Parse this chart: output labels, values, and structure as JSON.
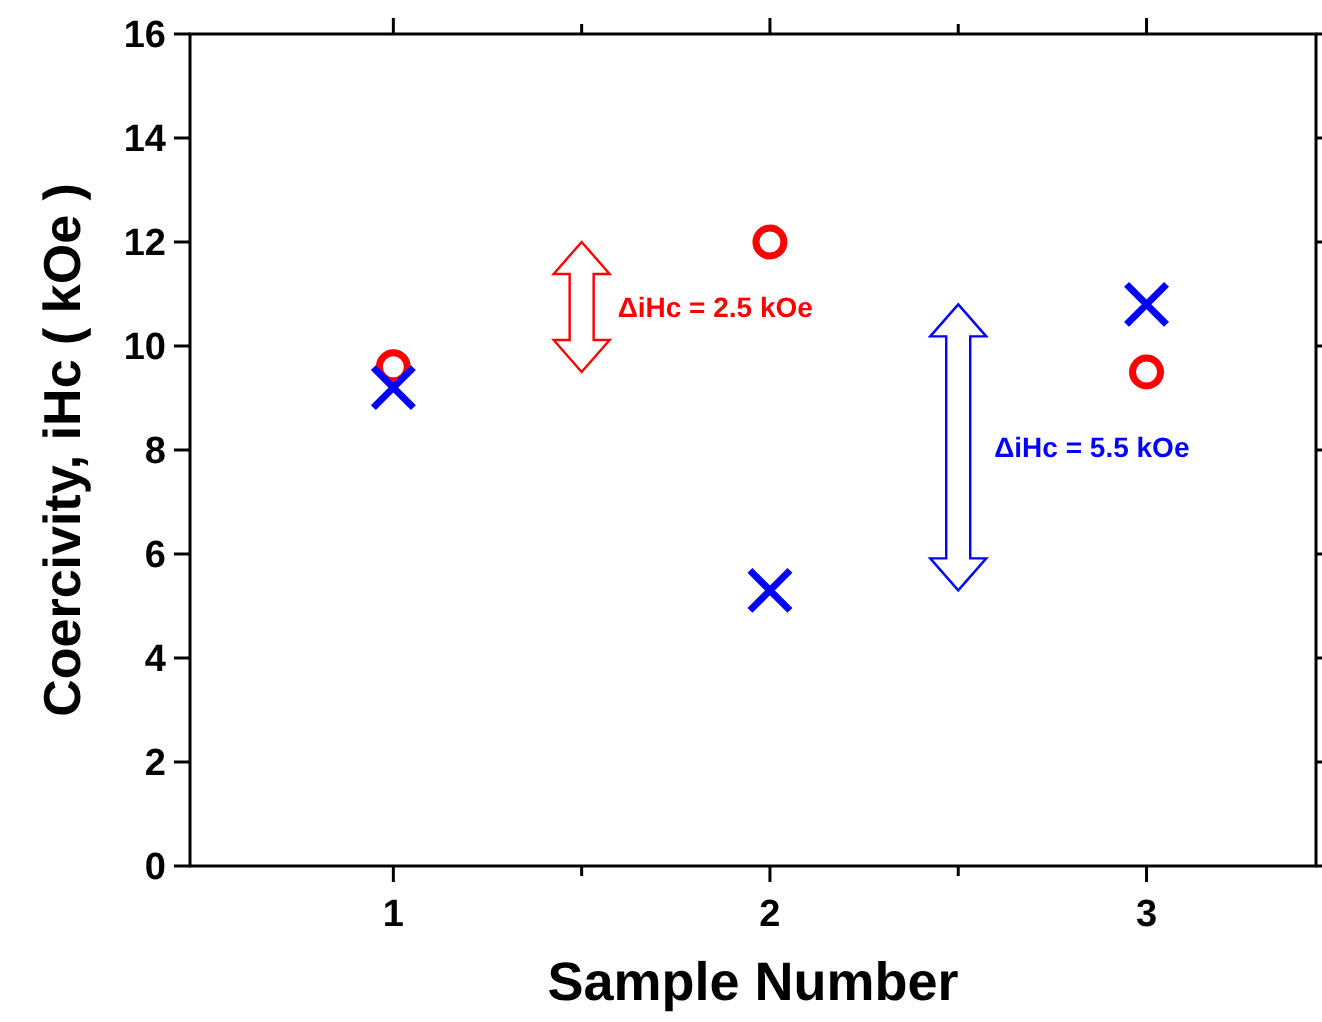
{
  "chart_data": {
    "type": "scatter",
    "xlabel": "Sample Number",
    "ylabel": "Coercivity, iHc ( kOe )",
    "x": [
      1,
      2,
      3
    ],
    "series": [
      {
        "color": "#ff0000",
        "marker": "circle",
        "values": [
          9.6,
          12.0,
          9.5
        ]
      },
      {
        "color": "#0000ff",
        "marker": "cross",
        "values": [
          9.2,
          5.3,
          10.8
        ]
      }
    ],
    "xlim": [
      0.46,
      3.45
    ],
    "xticks": [
      1,
      {
        "value": 1.5,
        "label": null
      },
      2,
      {
        "value": 2.5,
        "label": null
      },
      3
    ],
    "ylim": [
      0,
      16
    ],
    "yticks": [
      0,
      2,
      4,
      6,
      8,
      10,
      12,
      14,
      16
    ],
    "annotations": [
      "ΔiHc = 2.5 kOe",
      "ΔiHc = 5.5 kOe"
    ]
  }
}
